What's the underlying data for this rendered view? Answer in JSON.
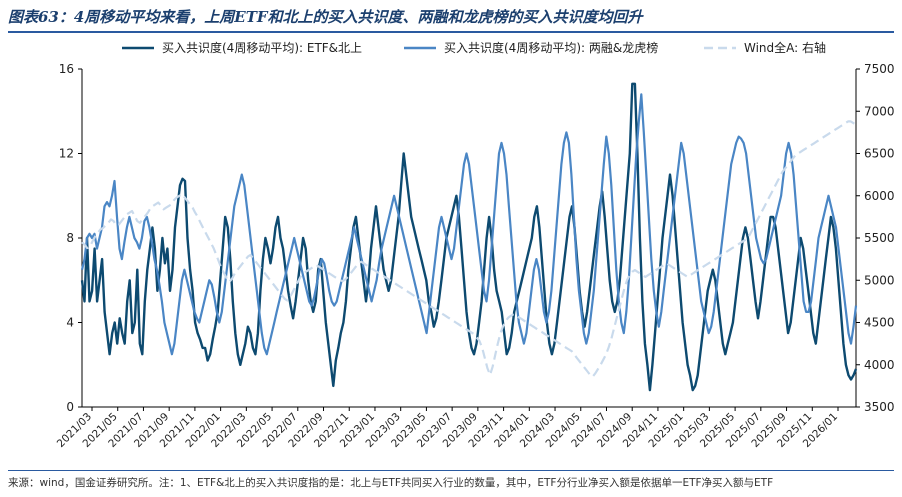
{
  "header": {
    "title": "图表63：4周移动平均来看，上周ETF和北上的买入共识度、两融和龙虎榜的买入共识度均回升"
  },
  "footer": {
    "note": "来源：wind，国金证券研究所。注：1、ETF&北上的买入共识度指的是：北上与ETF共同买入行业的数量，其中，ETF分行业净买入额是依据单一ETF净买入额与ETF"
  },
  "chart_data": {
    "type": "line",
    "title": "",
    "xlabel": "",
    "ylabel": "",
    "y2label": "",
    "x_tick_labels": [
      "2021/03",
      "2021/05",
      "2021/07",
      "2021/09",
      "2021/11",
      "2022/01",
      "2022/03",
      "2022/05",
      "2022/07",
      "2022/09",
      "2022/11",
      "2023/01",
      "2023/03",
      "2023/05",
      "2023/07",
      "2023/09",
      "2023/11",
      "2024/01",
      "2024/03",
      "2024/05",
      "2024/07",
      "2024/09",
      "2024/11",
      "2025/01",
      "2025/03",
      "2025/05",
      "2025/07",
      "2025/09",
      "2025/11",
      "2026/01"
    ],
    "ylim": [
      0,
      16
    ],
    "yticks": [
      0,
      4,
      8,
      12,
      16
    ],
    "y2lim": [
      3500,
      7500
    ],
    "y2ticks": [
      3500,
      4000,
      4500,
      5000,
      5500,
      6000,
      6500,
      7000,
      7500
    ],
    "legend_position": "top",
    "colors": {
      "etf_north": "#0d4a70",
      "margin_dragon": "#4a86c5",
      "wind_a": "#c9daec",
      "axis": "#000000"
    },
    "series": [
      {
        "name": "买入共识度(4周移动平均): ETF&北上",
        "axis": "left",
        "style": "solid",
        "color": "#0d4a70",
        "values": [
          6.0,
          5.0,
          8.0,
          5.0,
          5.5,
          7.5,
          5.0,
          6.0,
          7.0,
          4.5,
          3.5,
          2.5,
          3.5,
          4.0,
          3.0,
          4.2,
          3.5,
          3.0,
          5.0,
          6.0,
          3.5,
          4.0,
          6.5,
          3.0,
          2.5,
          5.0,
          6.5,
          7.5,
          8.5,
          7.5,
          5.5,
          6.5,
          8.0,
          6.8,
          7.5,
          5.5,
          6.5,
          8.5,
          9.5,
          10.5,
          10.8,
          10.7,
          8.0,
          6.5,
          5.5,
          4.0,
          3.5,
          3.2,
          2.8,
          2.8,
          2.2,
          2.5,
          3.2,
          3.8,
          4.5,
          6.0,
          7.5,
          9.0,
          8.5,
          7.0,
          5.0,
          3.5,
          2.5,
          2.0,
          2.5,
          3.0,
          3.8,
          3.5,
          2.8,
          2.5,
          3.5,
          5.5,
          7.0,
          8.0,
          7.5,
          6.8,
          7.5,
          8.5,
          9.0,
          8.0,
          7.5,
          6.5,
          5.5,
          4.8,
          4.2,
          5.0,
          6.0,
          7.0,
          8.0,
          7.5,
          6.0,
          5.0,
          4.5,
          5.0,
          6.5,
          7.0,
          5.5,
          4.0,
          3.0,
          2.0,
          1.0,
          2.2,
          2.8,
          3.5,
          4.0,
          5.0,
          6.5,
          7.5,
          8.5,
          9.0,
          8.0,
          7.0,
          6.0,
          5.0,
          6.0,
          7.5,
          8.5,
          9.5,
          8.5,
          7.5,
          6.5,
          6.0,
          5.5,
          6.0,
          7.0,
          8.0,
          9.0,
          10.5,
          12.0,
          11.0,
          10.0,
          9.0,
          8.5,
          8.0,
          7.5,
          7.0,
          6.5,
          6.0,
          5.0,
          4.5,
          3.8,
          4.2,
          5.0,
          6.0,
          7.0,
          8.0,
          8.5,
          9.0,
          9.5,
          10.0,
          9.0,
          7.5,
          6.0,
          4.5,
          3.5,
          2.8,
          2.5,
          3.0,
          4.0,
          5.0,
          6.5,
          8.0,
          9.0,
          8.0,
          6.5,
          5.5,
          5.0,
          4.5,
          3.5,
          2.5,
          2.8,
          3.5,
          4.5,
          5.0,
          5.5,
          6.0,
          6.5,
          7.0,
          7.5,
          8.0,
          9.0,
          9.5,
          8.5,
          7.0,
          5.5,
          4.0,
          3.0,
          2.5,
          3.0,
          4.0,
          5.0,
          6.0,
          7.0,
          8.0,
          9.0,
          9.5,
          8.5,
          7.0,
          5.5,
          4.5,
          3.8,
          4.5,
          5.5,
          6.5,
          7.5,
          8.5,
          9.5,
          10.2,
          9.0,
          7.5,
          6.0,
          5.0,
          4.5,
          5.0,
          6.0,
          7.5,
          9.0,
          10.5,
          12.0,
          15.3,
          15.3,
          12.0,
          8.0,
          5.0,
          3.0,
          2.0,
          0.8,
          2.0,
          3.5,
          5.0,
          6.5,
          8.0,
          9.0,
          10.0,
          11.0,
          10.0,
          8.5,
          7.0,
          5.5,
          4.0,
          3.0,
          2.0,
          1.5,
          0.8,
          1.0,
          1.5,
          2.5,
          3.5,
          4.5,
          5.5,
          6.0,
          6.5,
          6.0,
          5.0,
          4.0,
          3.0,
          2.5,
          3.0,
          3.5,
          4.0,
          5.0,
          6.0,
          7.0,
          8.0,
          8.5,
          8.0,
          7.0,
          6.0,
          5.0,
          4.2,
          5.0,
          6.0,
          7.0,
          8.0,
          9.0,
          9.0,
          8.5,
          7.5,
          6.5,
          5.5,
          4.5,
          3.5,
          4.0,
          5.0,
          6.0,
          7.0,
          8.0,
          7.5,
          6.5,
          5.5,
          4.5,
          3.5,
          3.0,
          4.0,
          5.0,
          6.0,
          7.0,
          8.0,
          9.0,
          8.5,
          7.5,
          6.0,
          4.5,
          3.0,
          2.0,
          1.5,
          1.3,
          1.5,
          1.8
        ]
      },
      {
        "name": "买入共识度(4周移动平均): 两融&龙虎榜",
        "axis": "left",
        "style": "solid",
        "color": "#4a86c5",
        "values": [
          6.5,
          7.0,
          8.0,
          8.2,
          8.0,
          8.2,
          7.5,
          8.0,
          8.5,
          9.5,
          9.7,
          9.5,
          10.0,
          10.7,
          9.0,
          7.5,
          7.0,
          7.8,
          8.5,
          9.0,
          8.5,
          8.0,
          7.8,
          7.5,
          8.0,
          8.8,
          9.0,
          8.5,
          7.8,
          7.0,
          6.5,
          5.8,
          5.0,
          4.0,
          3.5,
          3.0,
          2.5,
          3.0,
          4.0,
          5.0,
          6.0,
          6.5,
          6.0,
          5.5,
          5.0,
          4.5,
          4.2,
          4.0,
          4.5,
          5.0,
          5.5,
          6.0,
          5.8,
          5.2,
          4.5,
          4.0,
          4.5,
          5.5,
          6.5,
          7.5,
          8.5,
          9.5,
          10.0,
          10.5,
          11.0,
          10.5,
          9.5,
          8.5,
          7.5,
          6.5,
          5.5,
          4.5,
          3.5,
          2.8,
          2.5,
          3.0,
          3.5,
          4.0,
          4.5,
          5.0,
          5.5,
          6.0,
          6.5,
          7.0,
          7.5,
          8.0,
          7.5,
          7.0,
          6.5,
          6.0,
          5.5,
          5.0,
          4.8,
          5.2,
          5.8,
          6.5,
          7.0,
          6.8,
          6.2,
          5.5,
          5.0,
          4.8,
          5.0,
          5.5,
          6.0,
          6.5,
          7.0,
          7.5,
          8.0,
          8.5,
          8.0,
          7.5,
          7.0,
          6.5,
          6.0,
          5.5,
          5.0,
          5.5,
          6.0,
          6.8,
          7.5,
          8.0,
          8.5,
          9.0,
          9.5,
          10.0,
          9.5,
          9.0,
          8.5,
          8.0,
          7.5,
          7.0,
          6.5,
          6.0,
          5.5,
          5.0,
          4.5,
          4.0,
          3.5,
          4.5,
          5.5,
          6.5,
          7.5,
          8.5,
          9.0,
          8.5,
          8.0,
          7.5,
          7.0,
          7.5,
          8.5,
          9.5,
          10.5,
          11.5,
          12.0,
          11.5,
          10.5,
          9.5,
          8.5,
          7.5,
          6.5,
          5.5,
          5.0,
          6.0,
          7.5,
          9.0,
          10.5,
          12.0,
          12.5,
          12.0,
          11.0,
          9.5,
          8.0,
          6.5,
          5.0,
          4.0,
          3.5,
          3.0,
          3.5,
          4.5,
          5.5,
          6.5,
          7.0,
          6.5,
          5.5,
          4.5,
          4.0,
          4.5,
          5.5,
          7.0,
          8.5,
          10.0,
          11.5,
          12.5,
          13.0,
          12.5,
          11.0,
          9.0,
          7.0,
          5.5,
          4.5,
          3.5,
          3.0,
          3.5,
          4.5,
          5.5,
          7.0,
          8.5,
          10.0,
          11.5,
          12.8,
          12.0,
          10.5,
          8.5,
          6.5,
          5.0,
          4.0,
          3.5,
          4.5,
          6.0,
          8.0,
          10.0,
          12.0,
          13.5,
          14.8,
          13.0,
          11.0,
          9.0,
          7.0,
          5.5,
          4.5,
          3.8,
          4.5,
          5.5,
          6.5,
          7.5,
          8.5,
          9.5,
          10.5,
          11.5,
          12.5,
          12.0,
          11.0,
          10.0,
          9.0,
          8.0,
          7.0,
          6.0,
          5.0,
          4.5,
          4.0,
          3.5,
          3.8,
          4.5,
          5.5,
          6.5,
          7.5,
          8.5,
          9.5,
          10.5,
          11.5,
          12.0,
          12.5,
          12.8,
          12.7,
          12.5,
          12.0,
          11.0,
          10.0,
          9.0,
          8.0,
          7.5,
          7.0,
          6.8,
          7.0,
          7.5,
          8.0,
          8.5,
          9.0,
          9.5,
          10.0,
          11.0,
          12.0,
          12.5,
          12.0,
          11.0,
          9.5,
          8.0,
          6.5,
          5.0,
          4.5,
          4.5,
          5.0,
          6.0,
          7.0,
          8.0,
          8.5,
          9.0,
          9.5,
          10.0,
          9.5,
          9.0,
          8.5,
          7.5,
          6.5,
          5.5,
          4.5,
          3.5,
          3.0,
          3.8,
          4.8
        ]
      },
      {
        "name": "Wind全A: 右轴",
        "axis": "right",
        "style": "dashed",
        "color": "#c9daec",
        "values": [
          5450,
          5420,
          5380,
          5400,
          5460,
          5520,
          5560,
          5600,
          5620,
          5650,
          5680,
          5720,
          5700,
          5650,
          5660,
          5700,
          5740,
          5780,
          5800,
          5820,
          5760,
          5700,
          5680,
          5720,
          5760,
          5800,
          5850,
          5880,
          5900,
          5920,
          5880,
          5840,
          5860,
          5880,
          5900,
          5950,
          5980,
          6000,
          6020,
          5980,
          5940,
          5900,
          5860,
          5800,
          5750,
          5680,
          5620,
          5560,
          5500,
          5440,
          5380,
          5300,
          5220,
          5140,
          5080,
          5020,
          4980,
          5020,
          5080,
          5120,
          5160,
          5200,
          5240,
          5280,
          5300,
          5260,
          5220,
          5180,
          5140,
          5100,
          5060,
          5020,
          4980,
          4940,
          4900,
          4860,
          4820,
          4780,
          4760,
          4800,
          4860,
          4920,
          4980,
          5040,
          5080,
          5100,
          5120,
          5140,
          5160,
          5180,
          5160,
          5140,
          5120,
          5100,
          5080,
          5060,
          5040,
          5020,
          5000,
          4990,
          5010,
          5040,
          5080,
          5120,
          5160,
          5200,
          5220,
          5200,
          5180,
          5160,
          5140,
          5120,
          5100,
          5080,
          5060,
          5040,
          5020,
          5000,
          4980,
          4960,
          4940,
          4920,
          4900,
          4880,
          4860,
          4840,
          4820,
          4800,
          4780,
          4760,
          4740,
          4720,
          4700,
          4680,
          4660,
          4640,
          4620,
          4600,
          4580,
          4560,
          4540,
          4520,
          4500,
          4480,
          4460,
          4440,
          4420,
          4400,
          4380,
          4360,
          4320,
          4280,
          4200,
          4080,
          3960,
          3880,
          3980,
          4120,
          4260,
          4380,
          4460,
          4520,
          4560,
          4580,
          4600,
          4580,
          4560,
          4540,
          4520,
          4500,
          4480,
          4460,
          4440,
          4420,
          4400,
          4380,
          4360,
          4340,
          4320,
          4300,
          4280,
          4260,
          4240,
          4220,
          4200,
          4180,
          4160,
          4120,
          4080,
          4040,
          4000,
          3960,
          3920,
          3880,
          3860,
          3900,
          3950,
          4000,
          4060,
          4120,
          4200,
          4300,
          4420,
          4540,
          4660,
          4780,
          4900,
          5000,
          5060,
          5100,
          5120,
          5100,
          5080,
          5060,
          5040,
          5060,
          5080,
          5100,
          5120,
          5140,
          5160,
          5180,
          5200,
          5180,
          5160,
          5140,
          5120,
          5100,
          5080,
          5060,
          5040,
          5060,
          5080,
          5100,
          5120,
          5140,
          5160,
          5180,
          5200,
          5220,
          5240,
          5260,
          5280,
          5300,
          5320,
          5340,
          5360,
          5380,
          5400,
          5420,
          5440,
          5460,
          5480,
          5500,
          5560,
          5620,
          5680,
          5740,
          5800,
          5860,
          5920,
          5980,
          6040,
          6100,
          6160,
          6220,
          6280,
          6320,
          6360,
          6400,
          6440,
          6480,
          6500,
          6520,
          6540,
          6560,
          6580,
          6600,
          6620,
          6640,
          6660,
          6680,
          6700,
          6720,
          6740,
          6760,
          6780,
          6800,
          6820,
          6840,
          6860,
          6880,
          6880,
          6860,
          6840
        ]
      }
    ]
  }
}
